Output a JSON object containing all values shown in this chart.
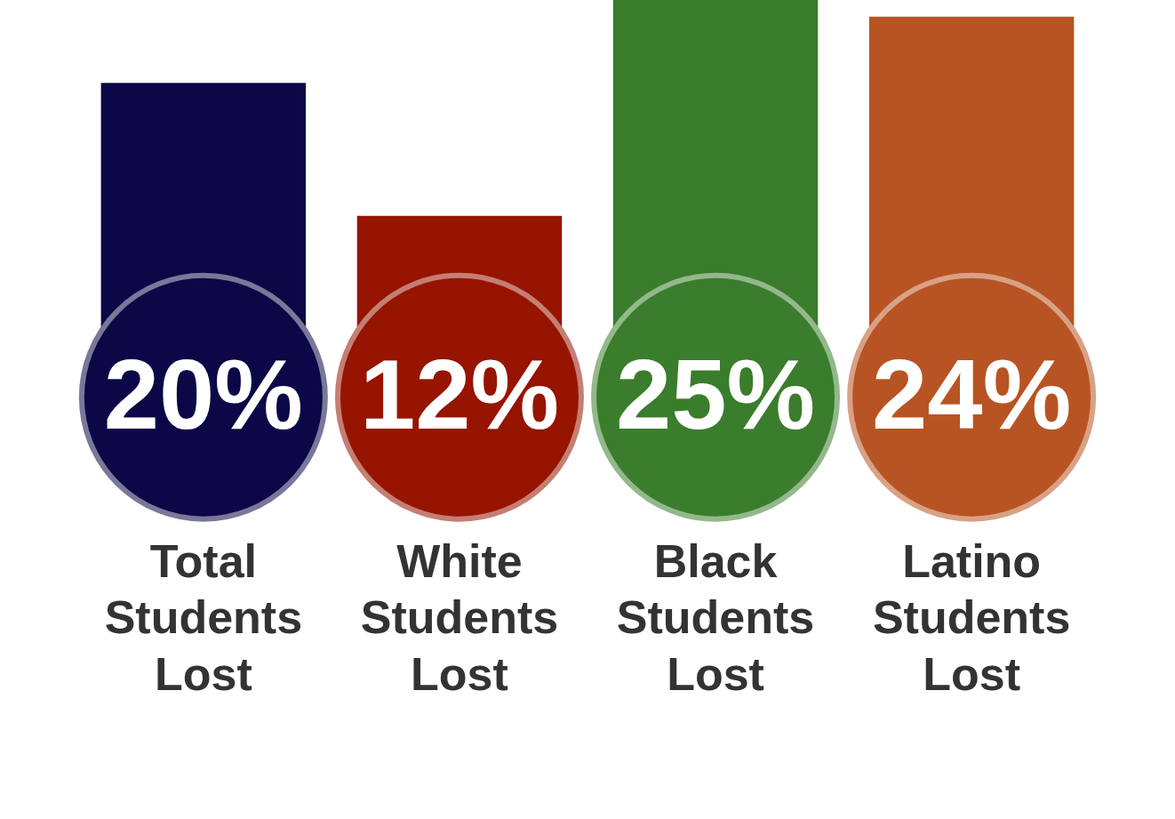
{
  "chart_data": {
    "type": "bar",
    "categories": [
      "Total Students Lost",
      "White Students Lost",
      "Black Students Lost",
      "Latino Students Lost"
    ],
    "values": [
      20,
      12,
      25,
      24
    ],
    "colors": [
      "#0c0847",
      "#961400",
      "#3a7d2c",
      "#b85423"
    ],
    "value_labels": [
      "20%",
      "12%",
      "25%",
      "24%"
    ],
    "grid": false,
    "legend": false
  }
}
